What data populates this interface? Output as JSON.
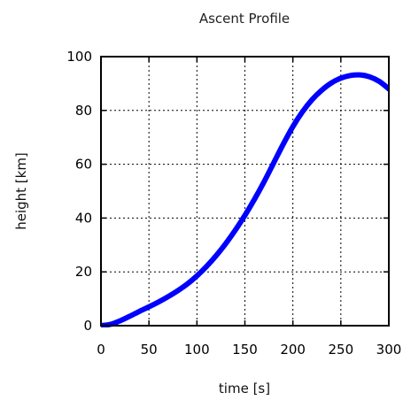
{
  "chart_data": {
    "type": "line",
    "title": "Ascent Profile",
    "xlabel": "time [s]",
    "ylabel": "height [km]",
    "xlim": [
      0,
      300
    ],
    "ylim": [
      0,
      100
    ],
    "xticks": [
      0,
      50,
      100,
      150,
      200,
      250,
      300
    ],
    "yticks": [
      0,
      20,
      40,
      60,
      80,
      100
    ],
    "grid": true,
    "series": [
      {
        "color": "#0000ff",
        "x": [
          0,
          10,
          20,
          30,
          40,
          50,
          60,
          70,
          80,
          90,
          100,
          110,
          120,
          130,
          140,
          150,
          160,
          170,
          180,
          190,
          200,
          210,
          220,
          230,
          240,
          250,
          260,
          270,
          280,
          290,
          300
        ],
        "y": [
          0,
          0.5,
          1.8,
          3.5,
          5.3,
          7.0,
          8.8,
          10.8,
          13.0,
          15.5,
          18.5,
          22.0,
          26.0,
          30.5,
          35.5,
          41.0,
          47.0,
          53.5,
          60.5,
          67.5,
          74.0,
          79.5,
          84.0,
          87.5,
          90.2,
          92.0,
          93.0,
          93.2,
          92.5,
          90.8,
          88.0
        ]
      }
    ]
  }
}
